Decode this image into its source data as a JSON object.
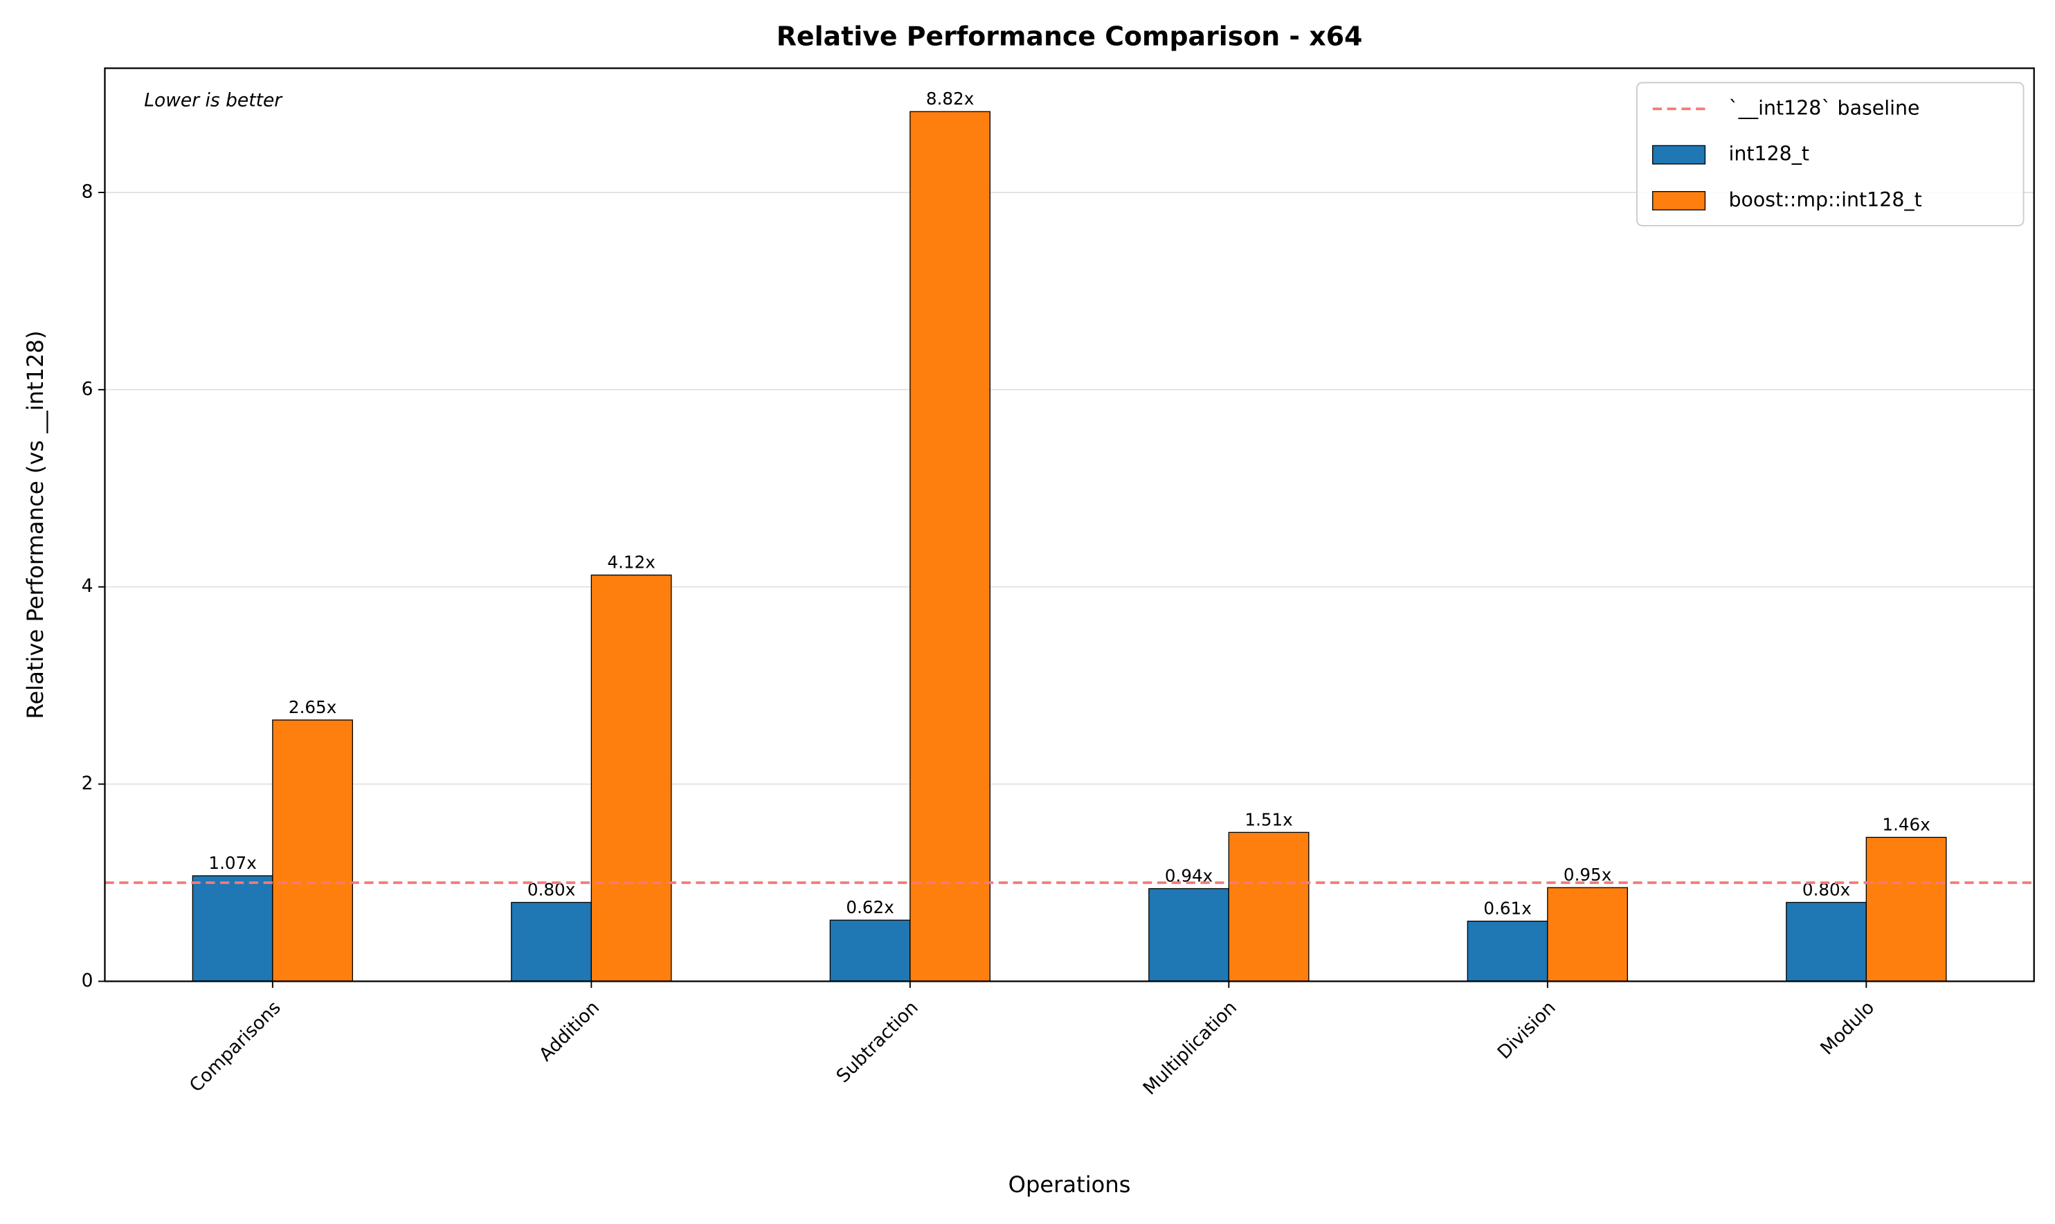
{
  "chart_data": {
    "type": "bar",
    "title": "Relative Performance Comparison - x64",
    "annotation": "Lower is better",
    "x_label": "Operations",
    "y_label": "Relative Performance (vs __int128)",
    "categories": [
      "Comparisons",
      "Addition",
      "Subtraction",
      "Multiplication",
      "Division",
      "Modulo"
    ],
    "series": [
      {
        "name": "int128_t",
        "color": "#1f77b4",
        "values": [
          1.07,
          0.8,
          0.62,
          0.94,
          0.61,
          0.8
        ],
        "value_labels": [
          "1.07x",
          "0.80x",
          "0.62x",
          "0.94x",
          "0.61x",
          "0.80x"
        ]
      },
      {
        "name": "boost::mp::int128_t",
        "color": "#ff7f0e",
        "values": [
          2.65,
          4.12,
          8.82,
          1.51,
          0.95,
          1.46
        ],
        "value_labels": [
          "2.65x",
          "4.12x",
          "8.82x",
          "1.51x",
          "0.95x",
          "1.46x"
        ]
      }
    ],
    "baseline": {
      "name": "`__int128` baseline",
      "value": 1,
      "color": "#f47a7a"
    },
    "ylim": [
      0,
      9.26
    ],
    "yticks": [
      0,
      2,
      4,
      6,
      8
    ],
    "grid": true,
    "legend": "upper right"
  }
}
